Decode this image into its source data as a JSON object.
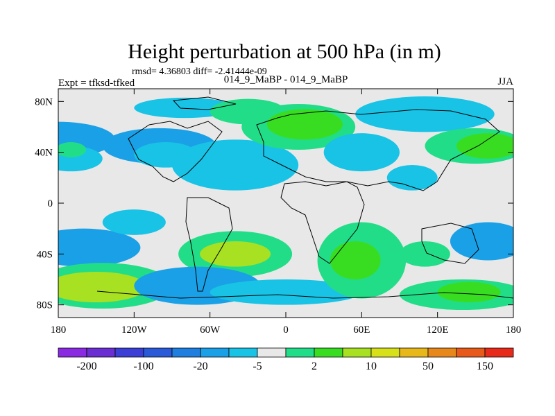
{
  "chart_data": {
    "type": "heatmap",
    "title": "Height perturbation at 500 hPa (in m)",
    "stats_text": "rmsd= 4.36803 diff= -2.41444e-09",
    "subtitle": "014_9_MaBP - 014_9_MaBP",
    "left_label": "Expt = tfksd-tfked",
    "right_label": "JJA",
    "x_axis": {
      "min": -180,
      "max": 180,
      "ticks": [
        -180,
        -120,
        -60,
        0,
        60,
        120,
        180
      ],
      "tick_labels": [
        "180",
        "120W",
        "60W",
        "0",
        "60E",
        "120E",
        "180"
      ]
    },
    "y_axis": {
      "min": -90,
      "max": 90,
      "ticks": [
        80,
        40,
        0,
        -40,
        -80
      ],
      "tick_labels": [
        "80N",
        "40N",
        "0",
        "40S",
        "80S"
      ]
    },
    "colorbar": {
      "colors": [
        "#8a2be2",
        "#6a2ed2",
        "#3c3fd6",
        "#2b5ad8",
        "#1f7fe0",
        "#1aa0e6",
        "#18c3e6",
        "#e8e8e8",
        "#22dd88",
        "#38dd22",
        "#a8e022",
        "#d8e01a",
        "#e8b81a",
        "#e8881a",
        "#e85a1a",
        "#e82a1a"
      ],
      "labels": [
        "-200",
        "-100",
        "-20",
        "-5",
        "2",
        "10",
        "50",
        "150"
      ]
    },
    "anomalies": [
      {
        "lon": -180,
        "lat": 50,
        "rlon": 45,
        "rlat": 14,
        "level": -2
      },
      {
        "lon": -170,
        "lat": 35,
        "rlon": 25,
        "rlat": 10,
        "level": -1
      },
      {
        "lon": -100,
        "lat": 45,
        "rlon": 45,
        "rlat": 14,
        "level": -2
      },
      {
        "lon": -95,
        "lat": 38,
        "rlon": 25,
        "rlat": 10,
        "level": -1
      },
      {
        "lon": -40,
        "lat": 30,
        "rlon": 50,
        "rlat": 20,
        "level": -1
      },
      {
        "lon": -80,
        "lat": 75,
        "rlon": 40,
        "rlat": 8,
        "level": -1
      },
      {
        "lon": -30,
        "lat": 72,
        "rlon": 30,
        "rlat": 10,
        "level": 1
      },
      {
        "lon": 10,
        "lat": 60,
        "rlon": 45,
        "rlat": 18,
        "level": 1
      },
      {
        "lon": 15,
        "lat": 62,
        "rlon": 30,
        "rlat": 12,
        "level": 2
      },
      {
        "lon": 60,
        "lat": 40,
        "rlon": 30,
        "rlat": 15,
        "level": -1
      },
      {
        "lon": 110,
        "lat": 70,
        "rlon": 55,
        "rlat": 14,
        "level": -1
      },
      {
        "lon": 150,
        "lat": 45,
        "rlon": 40,
        "rlat": 14,
        "level": 1
      },
      {
        "lon": 160,
        "lat": 45,
        "rlon": 25,
        "rlat": 10,
        "level": 2
      },
      {
        "lon": -170,
        "lat": 42,
        "rlon": 12,
        "rlat": 6,
        "level": 1
      },
      {
        "lon": -160,
        "lat": -35,
        "rlon": 45,
        "rlat": 15,
        "level": -2
      },
      {
        "lon": -145,
        "lat": -65,
        "rlon": 55,
        "rlat": 18,
        "level": 1
      },
      {
        "lon": -150,
        "lat": -66,
        "rlon": 40,
        "rlat": 12,
        "level": 3
      },
      {
        "lon": -40,
        "lat": -40,
        "rlon": 45,
        "rlat": 18,
        "level": 1
      },
      {
        "lon": -40,
        "lat": -40,
        "rlon": 28,
        "rlat": 10,
        "level": 3
      },
      {
        "lon": -70,
        "lat": -65,
        "rlon": 50,
        "rlat": 15,
        "level": -2
      },
      {
        "lon": 0,
        "lat": -70,
        "rlon": 60,
        "rlat": 10,
        "level": -1
      },
      {
        "lon": 60,
        "lat": -45,
        "rlon": 35,
        "rlat": 30,
        "level": 1
      },
      {
        "lon": 55,
        "lat": -45,
        "rlon": 20,
        "rlat": 15,
        "level": 2
      },
      {
        "lon": 110,
        "lat": -40,
        "rlon": 20,
        "rlat": 10,
        "level": 1
      },
      {
        "lon": 160,
        "lat": -30,
        "rlon": 30,
        "rlat": 15,
        "level": -2
      },
      {
        "lon": 140,
        "lat": -72,
        "rlon": 50,
        "rlat": 12,
        "level": 1
      },
      {
        "lon": 145,
        "lat": -70,
        "rlon": 25,
        "rlat": 8,
        "level": 2
      },
      {
        "lon": -120,
        "lat": -15,
        "rlon": 25,
        "rlat": 10,
        "level": -1
      },
      {
        "lon": 100,
        "lat": 20,
        "rlon": 20,
        "rlat": 10,
        "level": -1
      }
    ]
  }
}
